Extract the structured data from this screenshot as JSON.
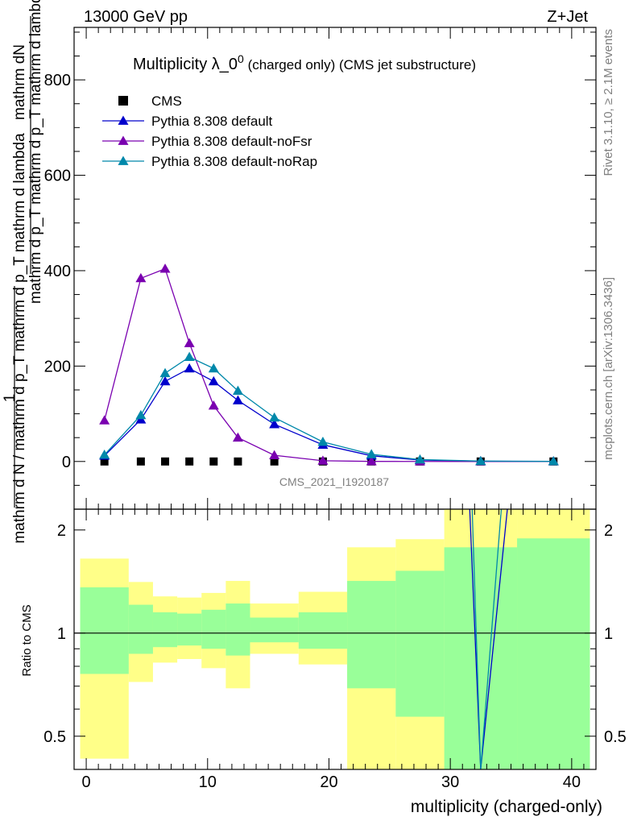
{
  "header": {
    "left": "13000 GeV pp",
    "right": "Z+Jet"
  },
  "side": {
    "rivet": "Rivet 3.1.10, ≥ 2.1M events",
    "mcplots": "mcplots.cern.ch [arXiv:1306.3436]"
  },
  "chart_data": [
    {
      "type": "line",
      "title_main": "Multiplicity λ_0",
      "title_sup": "0",
      "title_rest": " (charged only) (CMS jet substructure)",
      "watermark": "CMS_2021_I1920187",
      "ylabel_top": "mathrm dN",
      "ylabel_mid": "mathrm d p_T mathrm d p_T mathrm d lambda",
      "ylabel_one": "1",
      "ylabel_bottom": "mathrm d N / mathrm d p_T mathrm d p_T mathrm d lambda",
      "xlim": [
        -1,
        42
      ],
      "ylim": [
        -100,
        910
      ],
      "y_ticks": [
        0,
        200,
        400,
        600,
        800
      ],
      "legend_position": "top-left",
      "x": [
        1.5,
        4.5,
        6.5,
        8.5,
        10.5,
        12.5,
        15.5,
        19.5,
        23.5,
        27.5,
        32.5,
        38.5
      ],
      "series": [
        {
          "name": "CMS",
          "marker": "square",
          "color": "#000000",
          "values": [
            0,
            0,
            0,
            0,
            0,
            0,
            0,
            0,
            0,
            0,
            0,
            0
          ]
        },
        {
          "name": "Pythia 8.308 default",
          "marker": "triangle",
          "color": "#0000cc",
          "values": [
            12,
            88,
            168,
            195,
            168,
            128,
            78,
            35,
            12,
            3,
            0.6,
            0.2
          ]
        },
        {
          "name": "Pythia 8.308 default-noFsr",
          "marker": "triangle",
          "color": "#7a00b0",
          "values": [
            86,
            384,
            404,
            248,
            117,
            50,
            13,
            1.5,
            0.2,
            0.02,
            0,
            0
          ]
        },
        {
          "name": "Pythia 8.308 default-noRap",
          "marker": "triangle",
          "color": "#0088aa",
          "values": [
            14,
            97,
            185,
            219,
            195,
            148,
            92,
            41,
            15,
            4,
            0.8,
            0.2
          ]
        }
      ]
    },
    {
      "type": "area",
      "ylabel": "Ratio to CMS",
      "xlabel": "multiplicity (charged-only)",
      "xlim": [
        -1,
        42
      ],
      "ylim": [
        0.4,
        2.3
      ],
      "x_ticks": [
        0,
        10,
        20,
        30,
        40
      ],
      "y_ticks": [
        "0.5",
        "1",
        "2"
      ],
      "y_tick_values": [
        0.5,
        1,
        2
      ],
      "band_bins": [
        {
          "lo": -0.5,
          "hi": 3.5,
          "yellow": [
            0.43,
            1.65
          ],
          "green": [
            0.76,
            1.36
          ]
        },
        {
          "lo": 3.5,
          "hi": 5.5,
          "yellow": [
            0.72,
            1.41
          ],
          "green": [
            0.87,
            1.21
          ]
        },
        {
          "lo": 5.5,
          "hi": 7.5,
          "yellow": [
            0.82,
            1.28
          ],
          "green": [
            0.91,
            1.15
          ]
        },
        {
          "lo": 7.5,
          "hi": 9.5,
          "yellow": [
            0.84,
            1.27
          ],
          "green": [
            0.92,
            1.14
          ]
        },
        {
          "lo": 9.5,
          "hi": 11.5,
          "yellow": [
            0.79,
            1.31
          ],
          "green": [
            0.9,
            1.17
          ]
        },
        {
          "lo": 11.5,
          "hi": 13.5,
          "yellow": [
            0.69,
            1.42
          ],
          "green": [
            0.86,
            1.22
          ]
        },
        {
          "lo": 13.5,
          "hi": 17.5,
          "yellow": [
            0.87,
            1.22
          ],
          "green": [
            0.94,
            1.11
          ]
        },
        {
          "lo": 17.5,
          "hi": 21.5,
          "yellow": [
            0.81,
            1.32
          ],
          "green": [
            0.9,
            1.15
          ]
        },
        {
          "lo": 21.5,
          "hi": 25.5,
          "yellow": [
            0.4,
            1.78
          ],
          "green": [
            0.69,
            1.42
          ]
        },
        {
          "lo": 25.5,
          "hi": 29.5,
          "yellow": [
            0.4,
            1.88
          ],
          "green": [
            0.57,
            1.52
          ]
        },
        {
          "lo": 29.5,
          "hi": 35.5,
          "yellow": [
            0.4,
            2.3
          ],
          "green": [
            0.4,
            1.78
          ]
        },
        {
          "lo": 35.5,
          "hi": 41.5,
          "yellow": [
            0.4,
            2.3
          ],
          "green": [
            0.4,
            1.89
          ]
        }
      ],
      "ratio_lines": [
        {
          "name": "Pythia 8.308 default",
          "color": "#0000cc",
          "points": [
            [
              31.6,
              2.3
            ],
            [
              32.5,
              0.4
            ],
            [
              34.7,
              2.3
            ]
          ]
        },
        {
          "name": "Pythia 8.308 default-noRap",
          "color": "#0088aa",
          "points": [
            [
              31.8,
              2.3
            ],
            [
              32.5,
              0.4
            ],
            [
              34.2,
              2.3
            ]
          ]
        }
      ]
    }
  ]
}
